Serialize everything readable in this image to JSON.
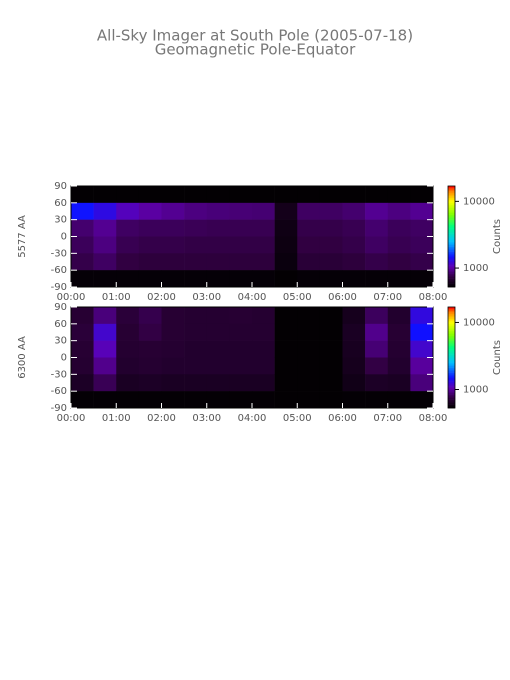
{
  "title": "All-Sky Imager at South Pole (2005-07-18)",
  "subtitle": "Geomagnetic Pole-Equator",
  "chart_data": [
    {
      "type": "heatmap",
      "ylabel": "5577 AA",
      "colorbar_label": "Counts",
      "colorbar_log": true,
      "clim": [
        520,
        17000
      ],
      "cticks": [
        1000,
        10000
      ],
      "xlim": [
        0,
        8
      ],
      "xticks": [
        {
          "value": 0,
          "label": "00:00"
        },
        {
          "value": 1,
          "label": "01:00"
        },
        {
          "value": 2,
          "label": "02:00"
        },
        {
          "value": 3,
          "label": "03:00"
        },
        {
          "value": 4,
          "label": "04:00"
        },
        {
          "value": 5,
          "label": "05:00"
        },
        {
          "value": 6,
          "label": "06:00"
        },
        {
          "value": 7,
          "label": "07:00"
        },
        {
          "value": 8,
          "label": "08:00"
        }
      ],
      "ylim": [
        -90,
        90
      ],
      "yticks": [
        90,
        60,
        30,
        0,
        -30,
        -60,
        -90
      ],
      "x_edges": [
        0,
        0.5,
        1,
        1.5,
        2,
        2.5,
        3,
        3.5,
        4,
        4.5,
        5,
        5.5,
        6,
        6.5,
        7,
        7.5,
        8
      ],
      "y_edges": [
        90,
        60,
        30,
        0,
        -30,
        -60,
        -90
      ],
      "values": [
        [
          530,
          530,
          530,
          530,
          530,
          530,
          530,
          530,
          530,
          530,
          530,
          530,
          530,
          530,
          530,
          530
        ],
        [
          1500,
          1300,
          1100,
          1000,
          950,
          900,
          880,
          870,
          860,
          600,
          820,
          820,
          850,
          950,
          900,
          950
        ],
        [
          850,
          950,
          820,
          800,
          800,
          790,
          780,
          780,
          780,
          580,
          760,
          760,
          780,
          850,
          800,
          820
        ],
        [
          800,
          900,
          780,
          760,
          760,
          750,
          750,
          750,
          750,
          570,
          740,
          740,
          760,
          820,
          780,
          800
        ],
        [
          760,
          820,
          740,
          720,
          720,
          720,
          720,
          720,
          720,
          560,
          700,
          700,
          720,
          760,
          740,
          760
        ],
        [
          540,
          540,
          540,
          540,
          540,
          540,
          540,
          540,
          540,
          530,
          540,
          540,
          540,
          540,
          540,
          540
        ]
      ]
    },
    {
      "type": "heatmap",
      "ylabel": "6300 AA",
      "colorbar_label": "Counts",
      "colorbar_log": true,
      "clim": [
        530,
        17000
      ],
      "cticks": [
        1000,
        10000
      ],
      "xlim": [
        0,
        8
      ],
      "xticks": [
        {
          "value": 0,
          "label": "00:00"
        },
        {
          "value": 1,
          "label": "01:00"
        },
        {
          "value": 2,
          "label": "02:00"
        },
        {
          "value": 3,
          "label": "03:00"
        },
        {
          "value": 4,
          "label": "04:00"
        },
        {
          "value": 5,
          "label": "05:00"
        },
        {
          "value": 6,
          "label": "06:00"
        },
        {
          "value": 7,
          "label": "07:00"
        },
        {
          "value": 8,
          "label": "08:00"
        }
      ],
      "ylim": [
        -90,
        90
      ],
      "yticks": [
        90,
        60,
        30,
        0,
        -30,
        -60,
        -90
      ],
      "x_edges": [
        0,
        0.5,
        1,
        1.5,
        2,
        2.5,
        3,
        3.5,
        4,
        4.5,
        5,
        5.5,
        6,
        6.5,
        7,
        7.5,
        8
      ],
      "y_edges": [
        90,
        60,
        30,
        0,
        -30,
        -60,
        -90
      ],
      "values": [
        [
          700,
          900,
          720,
          780,
          700,
          690,
          690,
          700,
          690,
          540,
          540,
          540,
          620,
          820,
          680,
          1300
        ],
        [
          720,
          1200,
          700,
          760,
          700,
          690,
          690,
          690,
          690,
          540,
          540,
          540,
          640,
          950,
          700,
          1500
        ],
        [
          700,
          1100,
          690,
          700,
          690,
          680,
          680,
          680,
          680,
          540,
          540,
          540,
          630,
          880,
          690,
          1200
        ],
        [
          690,
          950,
          680,
          690,
          680,
          680,
          680,
          680,
          680,
          540,
          540,
          540,
          620,
          760,
          680,
          1000
        ],
        [
          650,
          800,
          640,
          650,
          640,
          640,
          640,
          640,
          640,
          540,
          540,
          540,
          600,
          650,
          640,
          900
        ],
        [
          545,
          545,
          545,
          545,
          545,
          545,
          545,
          545,
          545,
          540,
          540,
          540,
          545,
          545,
          545,
          545
        ]
      ]
    }
  ]
}
